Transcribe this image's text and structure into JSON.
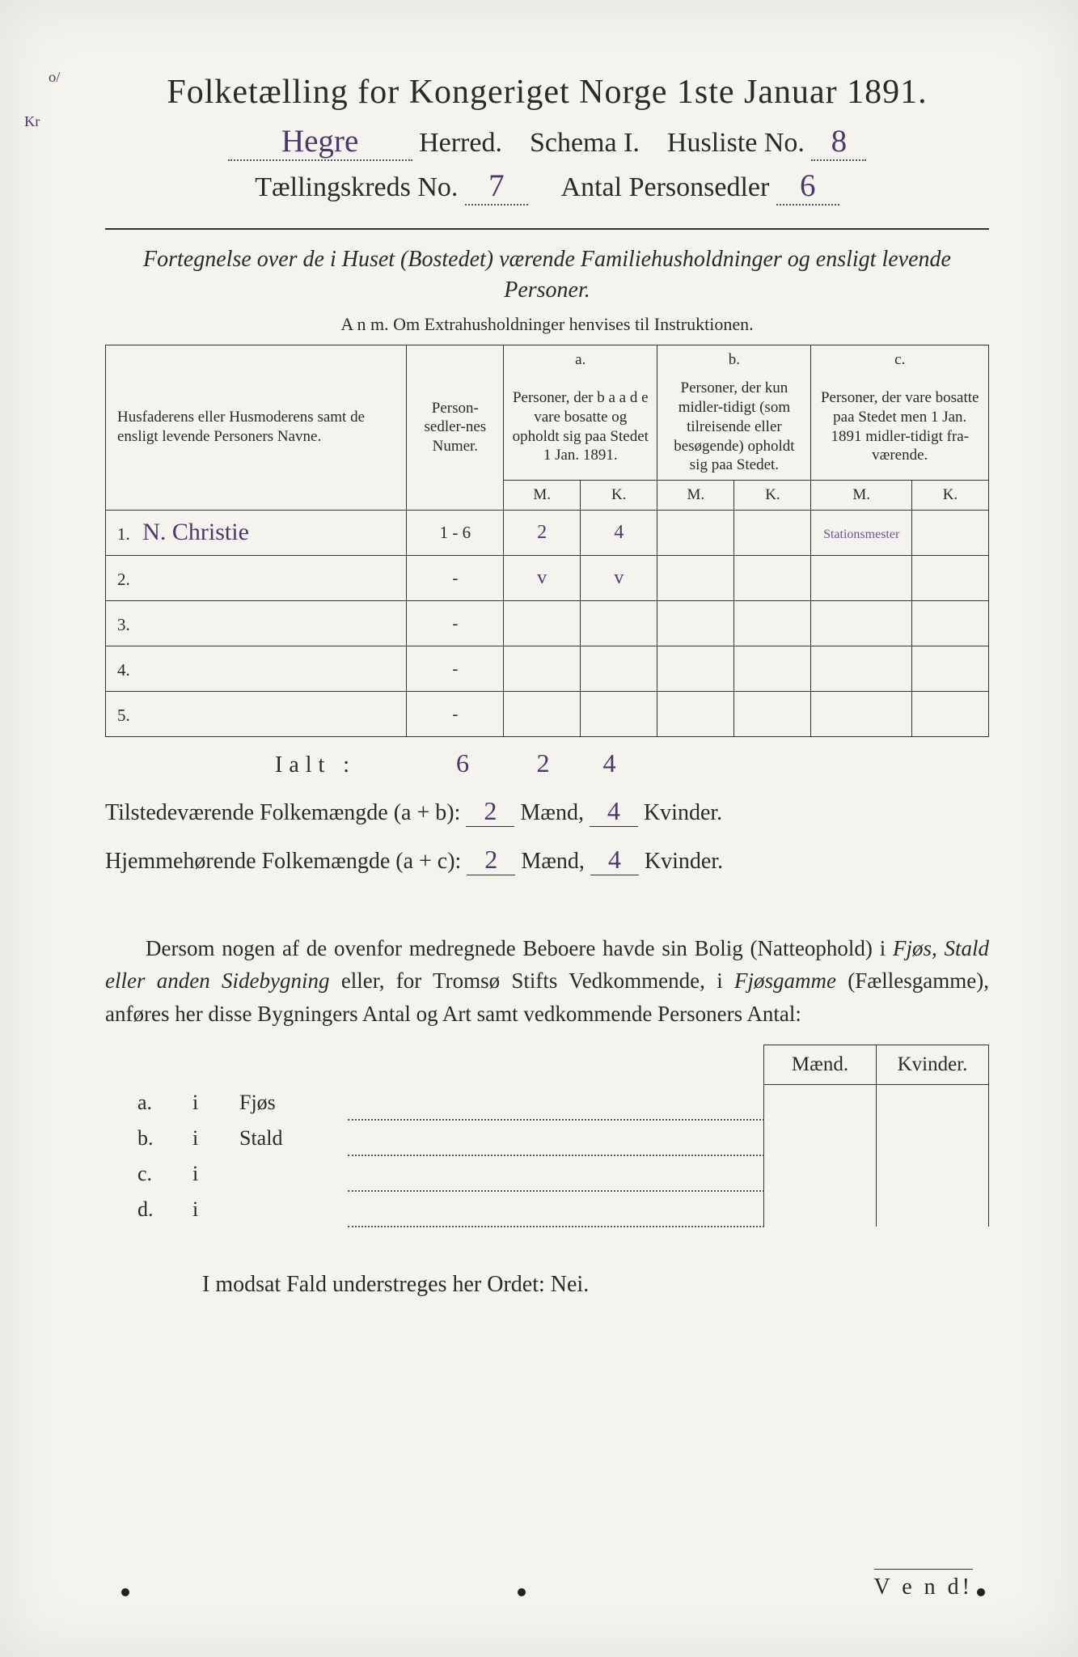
{
  "margin_mark": "o/",
  "margin_mark2": "Kr",
  "title": "Folketælling for Kongeriget Norge 1ste Januar 1891.",
  "line2": {
    "herred_name": "Hegre",
    "herred_label": "Herred.",
    "schema_label": "Schema I.",
    "husliste_label": "Husliste No.",
    "husliste_no": "8"
  },
  "line3": {
    "kreds_label": "Tællingskreds No.",
    "kreds_no": "7",
    "antal_label": "Antal Personsedler",
    "antal_no": "6"
  },
  "subtitle": "Fortegnelse over de i Huset (Bostedet) værende Familiehusholdninger og ensligt levende Personer.",
  "anm": "A n m.   Om Extrahusholdninger henvises til Instruktionen.",
  "headers": {
    "names": "Husfaderens eller Husmoderens samt de ensligt levende Personers Navne.",
    "numer": "Person-sedler-nes Numer.",
    "a_top": "a.",
    "a": "Personer, der b a a d e vare bosatte og opholdt sig paa Stedet 1 Jan. 1891.",
    "b_top": "b.",
    "b": "Personer, der kun midler-tidigt (som tilreisende eller besøgende) opholdt sig paa Stedet.",
    "c_top": "c.",
    "c": "Personer, der vare bosatte paa Stedet men 1 Jan. 1891 midler-tidigt fra-værende.",
    "m": "M.",
    "k": "K."
  },
  "rows": [
    {
      "n": "1.",
      "name": "N. Christie",
      "numer": "1 - 6",
      "am": "2",
      "ak": "4",
      "bm": "",
      "bk": "",
      "cm": "",
      "ck": "",
      "note": "Stationsmester"
    },
    {
      "n": "2.",
      "name": "",
      "numer": "-",
      "am": "v",
      "ak": "v",
      "bm": "",
      "bk": "",
      "cm": "",
      "ck": "",
      "note": ""
    },
    {
      "n": "3.",
      "name": "",
      "numer": "-",
      "am": "",
      "ak": "",
      "bm": "",
      "bk": "",
      "cm": "",
      "ck": "",
      "note": ""
    },
    {
      "n": "4.",
      "name": "",
      "numer": "-",
      "am": "",
      "ak": "",
      "bm": "",
      "bk": "",
      "cm": "",
      "ck": "",
      "note": ""
    },
    {
      "n": "5.",
      "name": "",
      "numer": "-",
      "am": "",
      "ak": "",
      "bm": "",
      "bk": "",
      "cm": "",
      "ck": "",
      "note": ""
    }
  ],
  "ialt": {
    "label": "Ialt :",
    "numer": "6",
    "am": "2",
    "ak": "4"
  },
  "tilstede": {
    "label": "Tilstedeværende Folkemængde (a + b):",
    "maend": "2",
    "maend_label": "Mænd,",
    "kvinder": "4",
    "kvinder_label": "Kvinder."
  },
  "hjemme": {
    "label": "Hjemmehørende Folkemængde (a + c):",
    "maend": "2",
    "maend_label": "Mænd,",
    "kvinder": "4",
    "kvinder_label": "Kvinder."
  },
  "para": "Dersom nogen af de ovenfor medregnede Beboere havde sin Bolig (Natteophold) i Fjøs, Stald eller anden Sidebygning eller, for Tromsø Stifts Vedkommende, i Fjøsgamme (Fællesgamme), anføres her disse Bygningers Antal og Art samt vedkommende Personers Antal:",
  "second_headers": {
    "maend": "Mænd.",
    "kvinder": "Kvinder."
  },
  "second_rows": [
    {
      "lab": "a.",
      "i": "i",
      "type": "Fjøs"
    },
    {
      "lab": "b.",
      "i": "i",
      "type": "Stald"
    },
    {
      "lab": "c.",
      "i": "i",
      "type": ""
    },
    {
      "lab": "d.",
      "i": "i",
      "type": ""
    }
  ],
  "nei_line": "I modsat Fald understreges her Ordet: Nei.",
  "vend": "V e n d!",
  "colors": {
    "paper": "#f5f3ed",
    "ink": "#2a2a2a",
    "handwriting": "#4a3a6a"
  }
}
